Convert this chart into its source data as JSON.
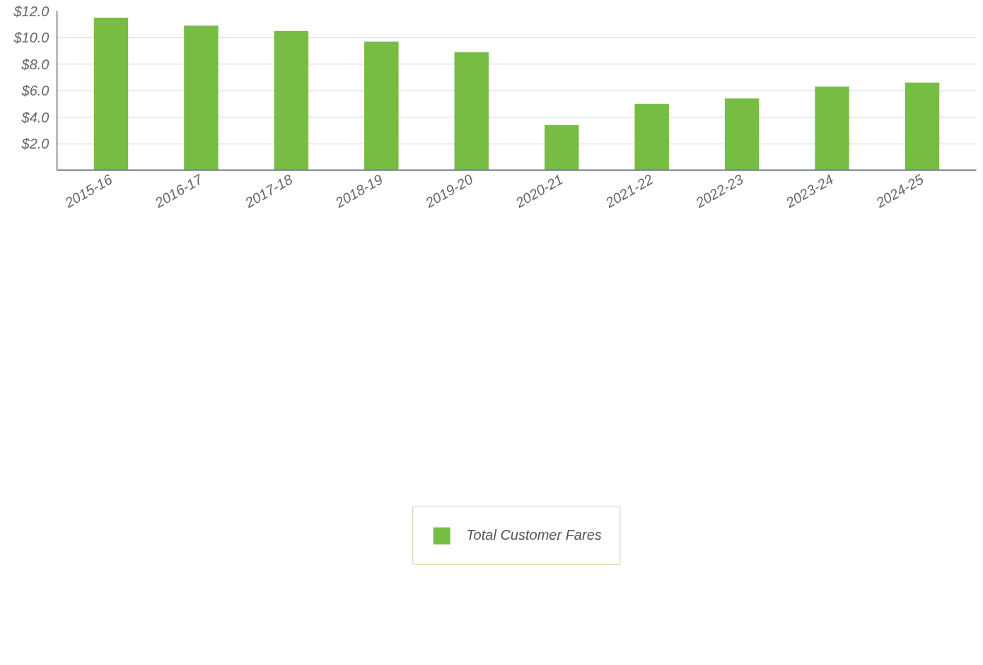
{
  "chart_data": {
    "type": "bar",
    "categories": [
      "2015-16",
      "2016-17",
      "2017-18",
      "2018-19",
      "2019-20",
      "2020-21",
      "2021-22",
      "2022-23",
      "2023-24",
      "2024-25"
    ],
    "series": [
      {
        "name": "Total Customer Fares",
        "color": "#77bc43",
        "values": [
          11.5,
          10.9,
          10.5,
          9.7,
          8.9,
          3.4,
          5.0,
          5.4,
          6.3,
          6.6
        ]
      }
    ],
    "ylim": [
      0,
      12
    ],
    "yticks": [
      {
        "value": 0,
        "label": null
      },
      {
        "value": 2,
        "label": "$2.0"
      },
      {
        "value": 4,
        "label": "$4.0"
      },
      {
        "value": 6,
        "label": "$6.0"
      },
      {
        "value": 8,
        "label": "$8.0"
      },
      {
        "value": 10,
        "label": "$10.0"
      },
      {
        "value": 12,
        "label": "$12.0"
      }
    ],
    "grid": "y",
    "legend": "bottom"
  }
}
